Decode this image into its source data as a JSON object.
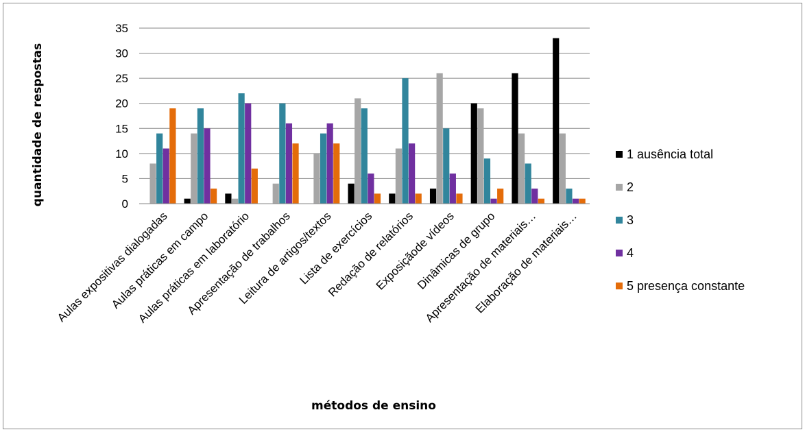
{
  "chart_data": {
    "type": "bar",
    "title": "",
    "xlabel": "métodos de ensino",
    "ylabel": "quantidade de respostas",
    "ylim": [
      0,
      35
    ],
    "yticks": [
      0,
      5,
      10,
      15,
      20,
      25,
      30,
      35
    ],
    "grid": true,
    "legend_position": "right",
    "categories": [
      "Aulas expositivas dialogadas",
      "Aulas práticas em campo",
      "Aulas práticas em laboratório",
      "Apresentação de trabalhos",
      "Leitura de artigos/textos",
      "Lista de exercícios",
      "Redação de relatórios",
      "Exposiçãode vídeos",
      "Dinâmicas de grupo",
      "Apresentação de materiais…",
      "Elaboração de materiais…"
    ],
    "series": [
      {
        "name": "1 ausência total",
        "color": "#000000",
        "values": [
          0,
          1,
          2,
          0,
          0,
          4,
          2,
          3,
          20,
          26,
          33
        ]
      },
      {
        "name": "2",
        "color": "#a6a6a6",
        "values": [
          8,
          14,
          1,
          4,
          10,
          21,
          11,
          26,
          19,
          14,
          14
        ]
      },
      {
        "name": "3",
        "color": "#31859c",
        "values": [
          14,
          19,
          22,
          20,
          14,
          19,
          25,
          15,
          9,
          8,
          3
        ]
      },
      {
        "name": "4",
        "color": "#7030a0",
        "values": [
          11,
          15,
          20,
          16,
          16,
          6,
          12,
          6,
          1,
          3,
          1
        ]
      },
      {
        "name": "5 presença constante",
        "color": "#e46c0a",
        "values": [
          19,
          3,
          7,
          12,
          12,
          2,
          2,
          2,
          3,
          1,
          1
        ]
      }
    ]
  }
}
